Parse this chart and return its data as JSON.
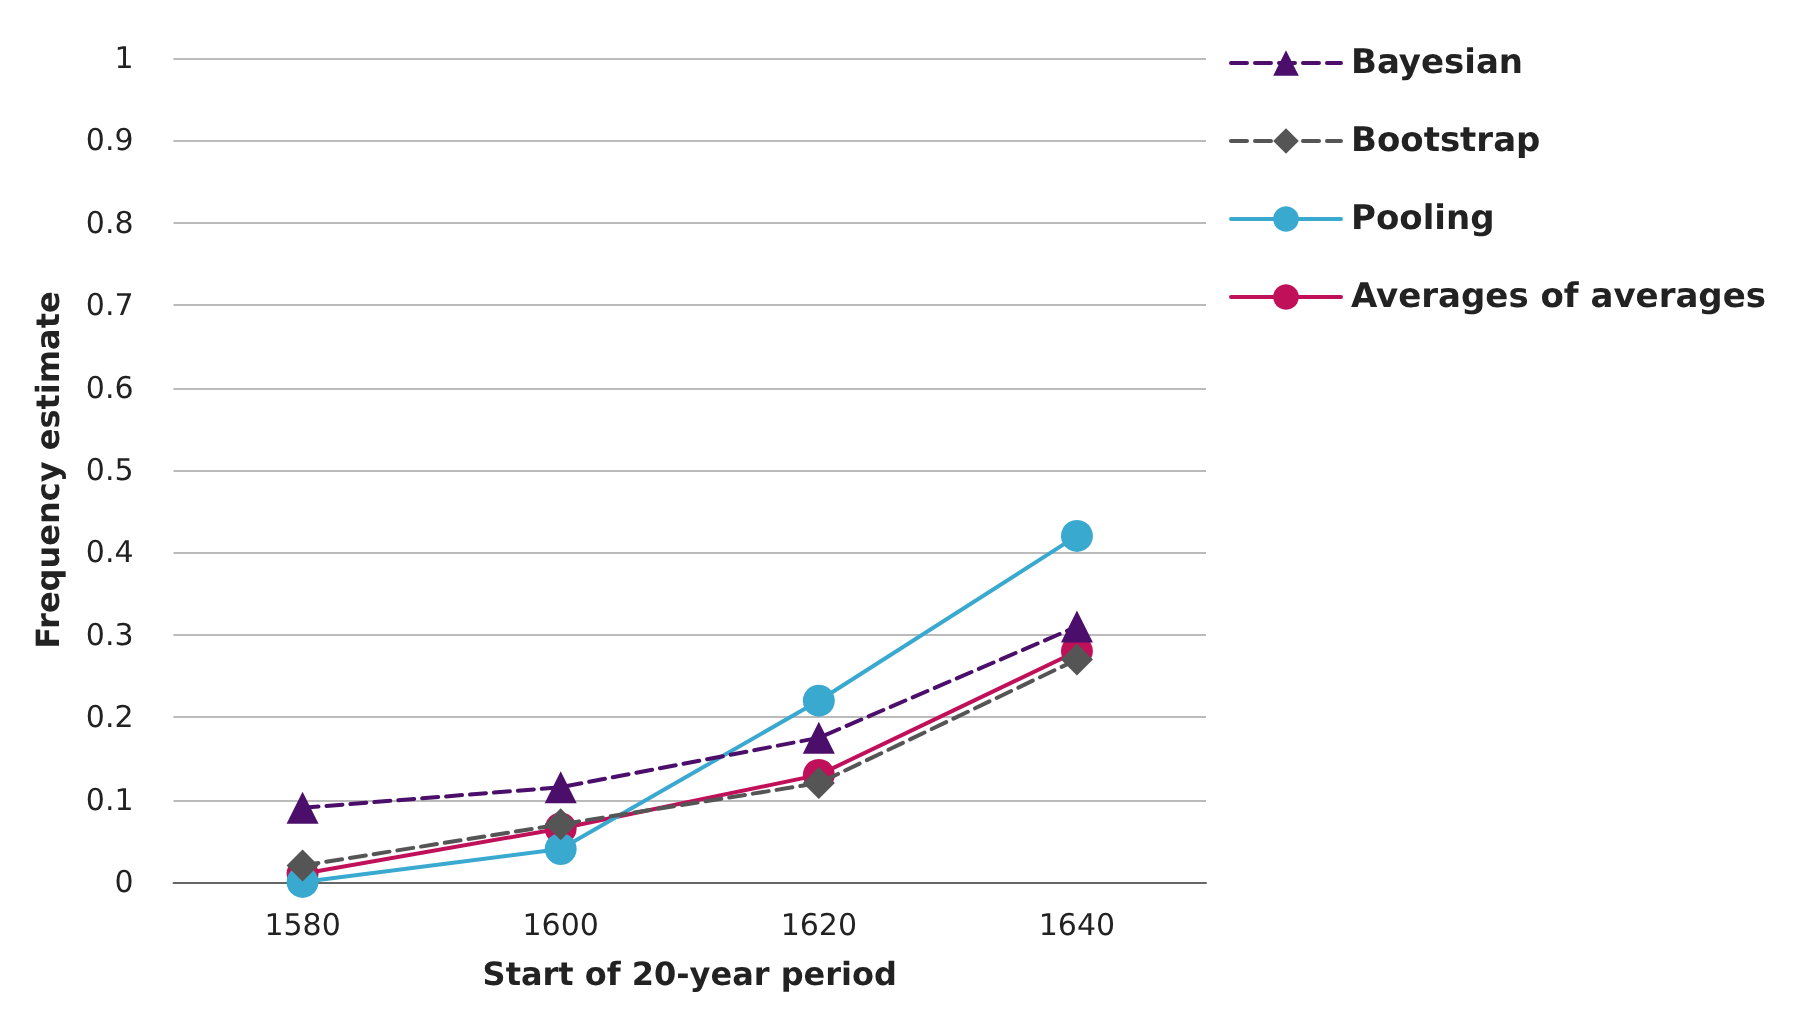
{
  "chart_data": {
    "type": "line",
    "xlabel": "Start of 20-year period",
    "ylabel": "Frequency estimate",
    "categories": [
      "1580",
      "1600",
      "1620",
      "1640"
    ],
    "series": [
      {
        "name": "Bayesian",
        "color": "#4b0f6b",
        "marker": "triangle",
        "line_style": "dashed",
        "values": [
          0.09,
          0.115,
          0.175,
          0.31
        ]
      },
      {
        "name": "Bootstrap",
        "color": "#555555",
        "marker": "diamond",
        "line_style": "dashed",
        "values": [
          0.02,
          0.07,
          0.12,
          0.27
        ]
      },
      {
        "name": "Pooling",
        "color": "#3aa9d0",
        "marker": "circle",
        "line_style": "solid",
        "values": [
          0,
          0.04,
          0.22,
          0.42
        ]
      },
      {
        "name": "Averages of averages",
        "color": "#c0105a",
        "marker": "circle",
        "line_style": "solid",
        "values": [
          0.01,
          0.065,
          0.13,
          0.28
        ]
      }
    ],
    "ylim": [
      0,
      1
    ],
    "yticks": [
      0,
      0.1,
      0.2,
      0.3,
      0.4,
      0.5,
      0.6,
      0.7,
      0.8,
      0.9,
      1
    ],
    "grid": "y",
    "legend": "top right"
  }
}
